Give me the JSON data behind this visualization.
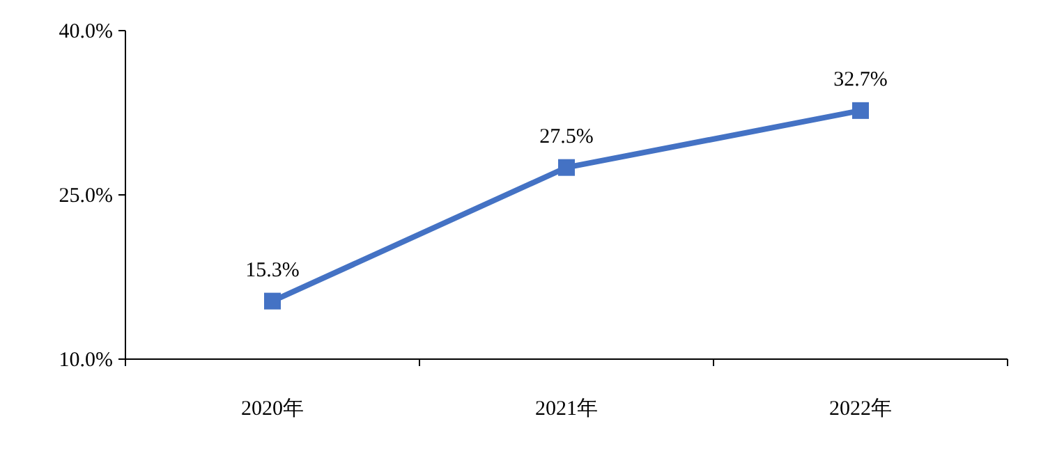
{
  "chart_data": {
    "type": "line",
    "categories": [
      "2020年",
      "2021年",
      "2022年"
    ],
    "series": [
      {
        "color": "#4472c4",
        "values": [
          15.3,
          27.5,
          32.7
        ],
        "value_labels": [
          "15.3%",
          "27.5%",
          "32.7%"
        ]
      }
    ],
    "ylim": [
      10,
      40
    ],
    "yticks": [
      {
        "value": 10,
        "label": "10.0%"
      },
      {
        "value": 25,
        "label": "25.0%"
      },
      {
        "value": 40,
        "label": "40.0%"
      }
    ],
    "marker": "square",
    "line_style": "solid"
  }
}
